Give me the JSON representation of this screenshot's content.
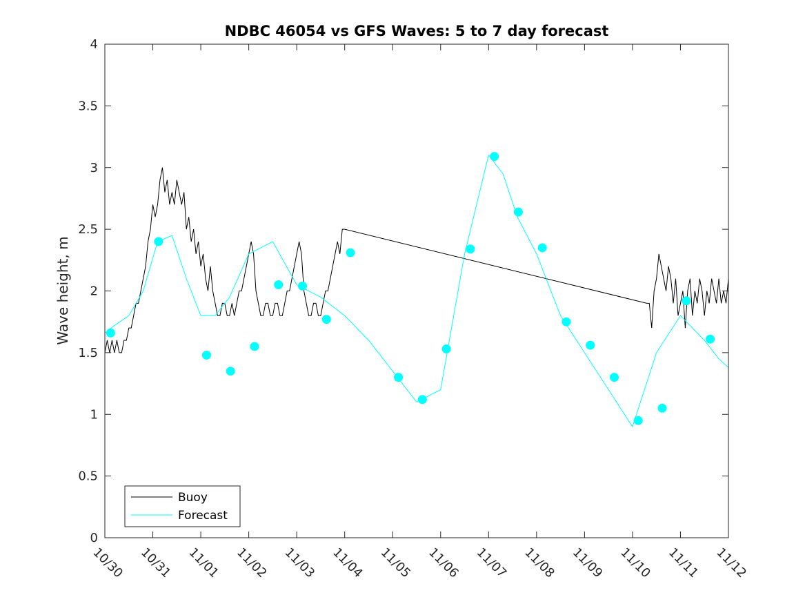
{
  "chart_data": {
    "type": "line",
    "title": "NDBC 46054 vs GFS Waves: 5 to 7 day forecast",
    "xlabel": "",
    "ylabel": "Wave height, m",
    "xlim": [
      0,
      13
    ],
    "ylim": [
      0,
      4
    ],
    "yticks": [
      0,
      0.5,
      1,
      1.5,
      2,
      2.5,
      3,
      3.5,
      4
    ],
    "ytick_labels": [
      "0",
      "0.5",
      "1",
      "1.5",
      "2",
      "2.5",
      "3",
      "3.5",
      "4"
    ],
    "xticks": [
      0,
      1,
      2,
      3,
      4,
      5,
      6,
      7,
      8,
      9,
      10,
      11,
      12,
      13
    ],
    "xtick_labels": [
      "10/30",
      "10/31",
      "11/01",
      "11/02",
      "11/03",
      "11/04",
      "11/05",
      "11/06",
      "11/07",
      "11/08",
      "11/09",
      "11/10",
      "11/11",
      "11/12"
    ],
    "x_units": "days since 10/30",
    "grid": false,
    "legend_position": "bottom-left",
    "colors": {
      "buoy": "#000000",
      "forecast": "#00ffff"
    },
    "legend": [
      {
        "label": "Buoy",
        "series": "buoy"
      },
      {
        "label": "Forecast",
        "series": "forecast"
      }
    ],
    "series": [
      {
        "name": "Buoy",
        "x": [
          0,
          0.05,
          0.1,
          0.15,
          0.2,
          0.25,
          0.3,
          0.35,
          0.4,
          0.45,
          0.5,
          0.55,
          0.6,
          0.65,
          0.7,
          0.75,
          0.8,
          0.85,
          0.9,
          0.95,
          1.0,
          1.05,
          1.1,
          1.15,
          1.2,
          1.25,
          1.3,
          1.35,
          1.4,
          1.45,
          1.5,
          1.55,
          1.6,
          1.65,
          1.7,
          1.75,
          1.8,
          1.85,
          1.9,
          1.95,
          2.0,
          2.05,
          2.1,
          2.15,
          2.2,
          2.25,
          2.3,
          2.35,
          2.4,
          2.45,
          2.5,
          2.55,
          2.6,
          2.65,
          2.7,
          2.75,
          2.8,
          2.85,
          2.9,
          2.95,
          3.0,
          3.05,
          3.1,
          3.15,
          3.2,
          3.25,
          3.3,
          3.35,
          3.4,
          3.45,
          3.5,
          3.55,
          3.6,
          3.65,
          3.7,
          3.75,
          3.8,
          3.85,
          3.9,
          3.95,
          4.0,
          4.05,
          4.1,
          4.15,
          4.2,
          4.25,
          4.3,
          4.35,
          4.4,
          4.45,
          4.5,
          4.55,
          4.6,
          4.65,
          4.7,
          4.75,
          4.8,
          4.85,
          4.9,
          4.95,
          5.0,
          11.3,
          11.35,
          11.4,
          11.45,
          11.5,
          11.55,
          11.6,
          11.65,
          11.7,
          11.75,
          11.8,
          11.85,
          11.9,
          11.95,
          12.0,
          12.05,
          12.1,
          12.15,
          12.2,
          12.25,
          12.3,
          12.35,
          12.4,
          12.45,
          12.5,
          12.55,
          12.6,
          12.65,
          12.7,
          12.75,
          12.8,
          12.85,
          12.9,
          12.95,
          13.0
        ],
        "y": [
          1.5,
          1.6,
          1.5,
          1.6,
          1.5,
          1.6,
          1.5,
          1.5,
          1.6,
          1.6,
          1.7,
          1.7,
          1.8,
          1.9,
          1.9,
          2.0,
          2.1,
          2.2,
          2.4,
          2.5,
          2.7,
          2.6,
          2.7,
          2.9,
          3.0,
          2.8,
          2.9,
          2.7,
          2.8,
          2.7,
          2.9,
          2.8,
          2.7,
          2.8,
          2.5,
          2.6,
          2.4,
          2.5,
          2.3,
          2.4,
          2.2,
          2.3,
          2.1,
          2.0,
          2.2,
          2.0,
          1.9,
          1.8,
          1.8,
          1.9,
          1.9,
          1.8,
          1.8,
          1.9,
          1.8,
          1.9,
          2.0,
          2.0,
          2.1,
          2.2,
          2.3,
          2.4,
          2.3,
          2.0,
          1.9,
          1.8,
          1.8,
          1.9,
          1.9,
          1.8,
          1.8,
          1.9,
          1.9,
          1.8,
          1.8,
          1.9,
          2.0,
          2.0,
          2.1,
          2.2,
          2.3,
          2.4,
          2.3,
          2.0,
          1.9,
          1.8,
          1.8,
          1.9,
          1.9,
          1.8,
          1.8,
          1.9,
          2.0,
          2.0,
          2.1,
          2.2,
          2.3,
          2.4,
          2.3,
          2.5,
          2.5,
          1.9,
          1.9,
          1.7,
          2.0,
          2.1,
          2.3,
          2.2,
          2.1,
          2.0,
          2.2,
          2.1,
          1.9,
          2.1,
          1.8,
          1.9,
          2.0,
          1.7,
          2.0,
          2.1,
          1.8,
          2.0,
          1.9,
          2.1,
          2.0,
          1.8,
          2.0,
          1.9,
          2.1,
          2.0,
          1.9,
          2.1,
          1.9,
          2.0,
          1.9,
          2.1
        ]
      },
      {
        "name": "Forecast",
        "x": [
          0,
          0.2,
          0.5,
          0.8,
          1.1,
          1.4,
          1.7,
          2.0,
          2.3,
          2.6,
          3.0,
          3.5,
          4.0,
          4.5,
          5.0,
          5.5,
          6.0,
          6.5,
          7.0,
          7.5,
          8.0,
          8.3,
          8.6,
          9.0,
          9.5,
          10.0,
          10.5,
          11.0,
          11.5,
          12.0,
          12.5,
          12.8,
          13.0
        ],
        "y": [
          1.66,
          1.72,
          1.8,
          2.0,
          2.4,
          2.45,
          2.1,
          1.8,
          1.8,
          1.95,
          2.3,
          2.4,
          2.05,
          1.95,
          1.8,
          1.6,
          1.35,
          1.1,
          1.2,
          2.3,
          3.1,
          2.95,
          2.6,
          2.3,
          1.8,
          1.5,
          1.2,
          0.9,
          1.5,
          1.8,
          1.6,
          1.45,
          1.38
        ]
      },
      {
        "name": "Forecast markers",
        "x": [
          0.12,
          1.12,
          2.12,
          2.62,
          3.12,
          3.62,
          4.12,
          4.62,
          5.12,
          6.12,
          6.62,
          7.12,
          7.62,
          8.12,
          8.62,
          9.12,
          9.62,
          10.12,
          10.62,
          11.12,
          11.62,
          12.12,
          12.62
        ],
        "y": [
          1.66,
          2.4,
          1.48,
          1.35,
          1.55,
          2.05,
          2.04,
          1.77,
          2.31,
          1.3,
          1.12,
          1.53,
          2.34,
          3.09,
          2.64,
          2.35,
          1.75,
          1.56,
          1.3,
          0.95,
          1.05,
          1.92,
          1.61
        ]
      }
    ]
  }
}
